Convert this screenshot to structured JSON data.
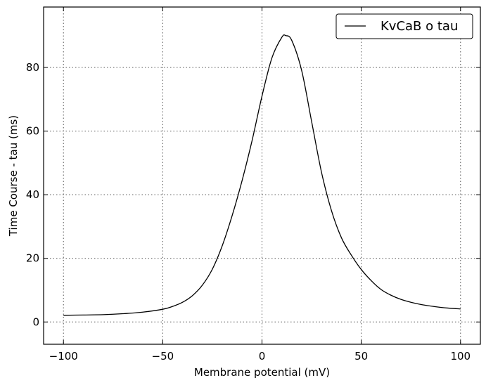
{
  "chart_data": {
    "type": "line",
    "xlabel": "Membrane potential (mV)",
    "ylabel": "Time Course - tau (ms)",
    "xlim": [
      -110,
      110
    ],
    "ylim": [
      -7,
      99
    ],
    "x_ticks": [
      -100,
      -50,
      0,
      50,
      100
    ],
    "x_tick_labels": [
      "−100",
      "−50",
      "0",
      "50",
      "100"
    ],
    "y_ticks": [
      0,
      20,
      40,
      60,
      80
    ],
    "y_tick_labels": [
      "0",
      "20",
      "40",
      "60",
      "80"
    ],
    "grid": true,
    "legend_position": "top-right",
    "series": [
      {
        "name": "KvCaB o tau",
        "color": "#000000",
        "x": [
          -100,
          -90,
          -80,
          -70,
          -60,
          -50,
          -45,
          -40,
          -35,
          -30,
          -25,
          -20,
          -15,
          -10,
          -5,
          0,
          5,
          10,
          12,
          15,
          20,
          25,
          30,
          35,
          40,
          45,
          50,
          55,
          60,
          65,
          70,
          75,
          80,
          85,
          90,
          95,
          100
        ],
        "y": [
          2.1,
          2.2,
          2.3,
          2.6,
          3.1,
          4.0,
          4.9,
          6.2,
          8.3,
          11.6,
          16.6,
          24.0,
          33.5,
          44.5,
          57.0,
          71.0,
          83.0,
          89.5,
          90.0,
          88.5,
          79.0,
          63.0,
          47.0,
          35.0,
          26.5,
          21.0,
          16.5,
          13.0,
          10.2,
          8.4,
          7.1,
          6.2,
          5.5,
          5.0,
          4.6,
          4.3,
          4.1
        ]
      }
    ]
  }
}
